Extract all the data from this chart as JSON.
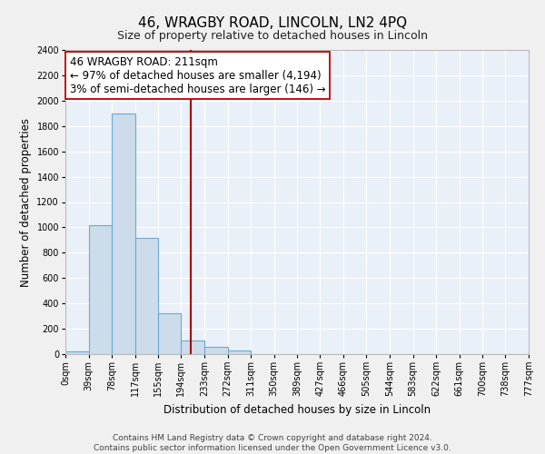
{
  "title": "46, WRAGBY ROAD, LINCOLN, LN2 4PQ",
  "subtitle": "Size of property relative to detached houses in Lincoln",
  "xlabel": "Distribution of detached houses by size in Lincoln",
  "ylabel": "Number of detached properties",
  "footer_line1": "Contains HM Land Registry data © Crown copyright and database right 2024.",
  "footer_line2": "Contains public sector information licensed under the Open Government Licence v3.0.",
  "bin_edges": [
    0,
    39,
    78,
    117,
    155,
    194,
    233,
    272,
    311,
    350,
    389,
    427,
    466,
    505,
    544,
    583,
    622,
    661,
    700,
    738,
    777
  ],
  "bin_labels": [
    "0sqm",
    "39sqm",
    "78sqm",
    "117sqm",
    "155sqm",
    "194sqm",
    "233sqm",
    "272sqm",
    "311sqm",
    "350sqm",
    "389sqm",
    "427sqm",
    "466sqm",
    "505sqm",
    "544sqm",
    "583sqm",
    "622sqm",
    "661sqm",
    "700sqm",
    "738sqm",
    "777sqm"
  ],
  "bar_heights": [
    20,
    1020,
    1900,
    920,
    320,
    105,
    55,
    30,
    0,
    0,
    0,
    0,
    0,
    0,
    0,
    0,
    0,
    0,
    0,
    0
  ],
  "bar_color": "#ccdceb",
  "bar_edge_color": "#6aaad4",
  "property_line_x": 211,
  "property_line_color": "#aa0000",
  "annotation_line1": "46 WRAGBY ROAD: 211sqm",
  "annotation_line2": "← 97% of detached houses are smaller (4,194)",
  "annotation_line3": "3% of semi-detached houses are larger (146) →",
  "annotation_box_facecolor": "#ffffff",
  "annotation_box_edgecolor": "#bb0000",
  "ylim": [
    0,
    2400
  ],
  "yticks": [
    0,
    200,
    400,
    600,
    800,
    1000,
    1200,
    1400,
    1600,
    1800,
    2000,
    2200,
    2400
  ],
  "bg_color": "#f0f0f0",
  "plot_bg_color": "#eaf0f7",
  "grid_color": "#ffffff",
  "title_fontsize": 11,
  "subtitle_fontsize": 9,
  "axis_label_fontsize": 8.5,
  "tick_fontsize": 7,
  "annotation_fontsize": 8.5,
  "footer_fontsize": 6.5
}
